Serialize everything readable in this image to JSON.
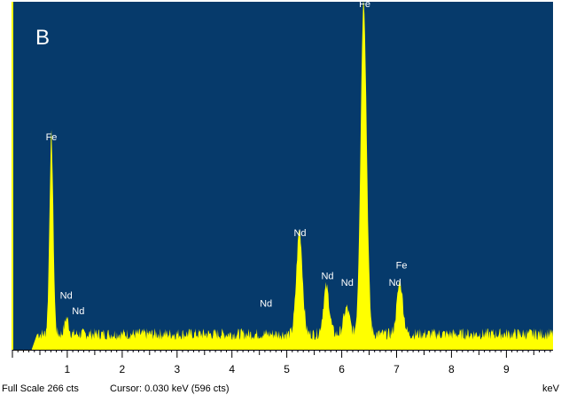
{
  "chart_data": {
    "type": "area",
    "panel_label": "B",
    "xlabel": "keV",
    "ylabel": "",
    "xlim": [
      0,
      9.85
    ],
    "ylim": [
      0,
      266
    ],
    "x_ticks": [
      1,
      2,
      3,
      4,
      5,
      6,
      7,
      8,
      9
    ],
    "baseline_counts": 12,
    "colors": {
      "background": "#063A6B",
      "spectrum": "#FFFF00",
      "axis": "#000000"
    },
    "peaks": [
      {
        "element": "Fe",
        "energy": 0.71,
        "counts": 152
      },
      {
        "element": "Nd",
        "energy": 0.98,
        "counts": 8
      },
      {
        "element": "Nd",
        "energy": 1.0,
        "counts": 5
      },
      {
        "element": "Nd",
        "energy": 5.23,
        "counts": 80
      },
      {
        "element": "Nd",
        "energy": 5.72,
        "counts": 36
      },
      {
        "element": "Nd",
        "energy": 6.09,
        "counts": 20
      },
      {
        "element": "Fe",
        "energy": 6.4,
        "counts": 256
      },
      {
        "element": "Fe",
        "energy": 7.06,
        "counts": 40
      }
    ],
    "labels": [
      {
        "text": "Fe",
        "energy": 0.71,
        "counts": 160
      },
      {
        "text": "Nd",
        "energy": 0.98,
        "counts": 39
      },
      {
        "text": "Nd",
        "energy": 1.2,
        "counts": 27
      },
      {
        "text": "Nd",
        "energy": 4.62,
        "counts": 33
      },
      {
        "text": "Nd",
        "energy": 5.24,
        "counts": 87
      },
      {
        "text": "Nd",
        "energy": 5.74,
        "counts": 54
      },
      {
        "text": "Nd",
        "energy": 6.1,
        "counts": 49
      },
      {
        "text": "Fe",
        "energy": 6.42,
        "counts": 262
      },
      {
        "text": "Fe",
        "energy": 7.09,
        "counts": 62
      },
      {
        "text": "Nd",
        "energy": 6.97,
        "counts": 49
      }
    ],
    "status": {
      "full_scale": "Full Scale 266 cts",
      "cursor": "Cursor: 0.030 keV (596 cts)"
    }
  }
}
